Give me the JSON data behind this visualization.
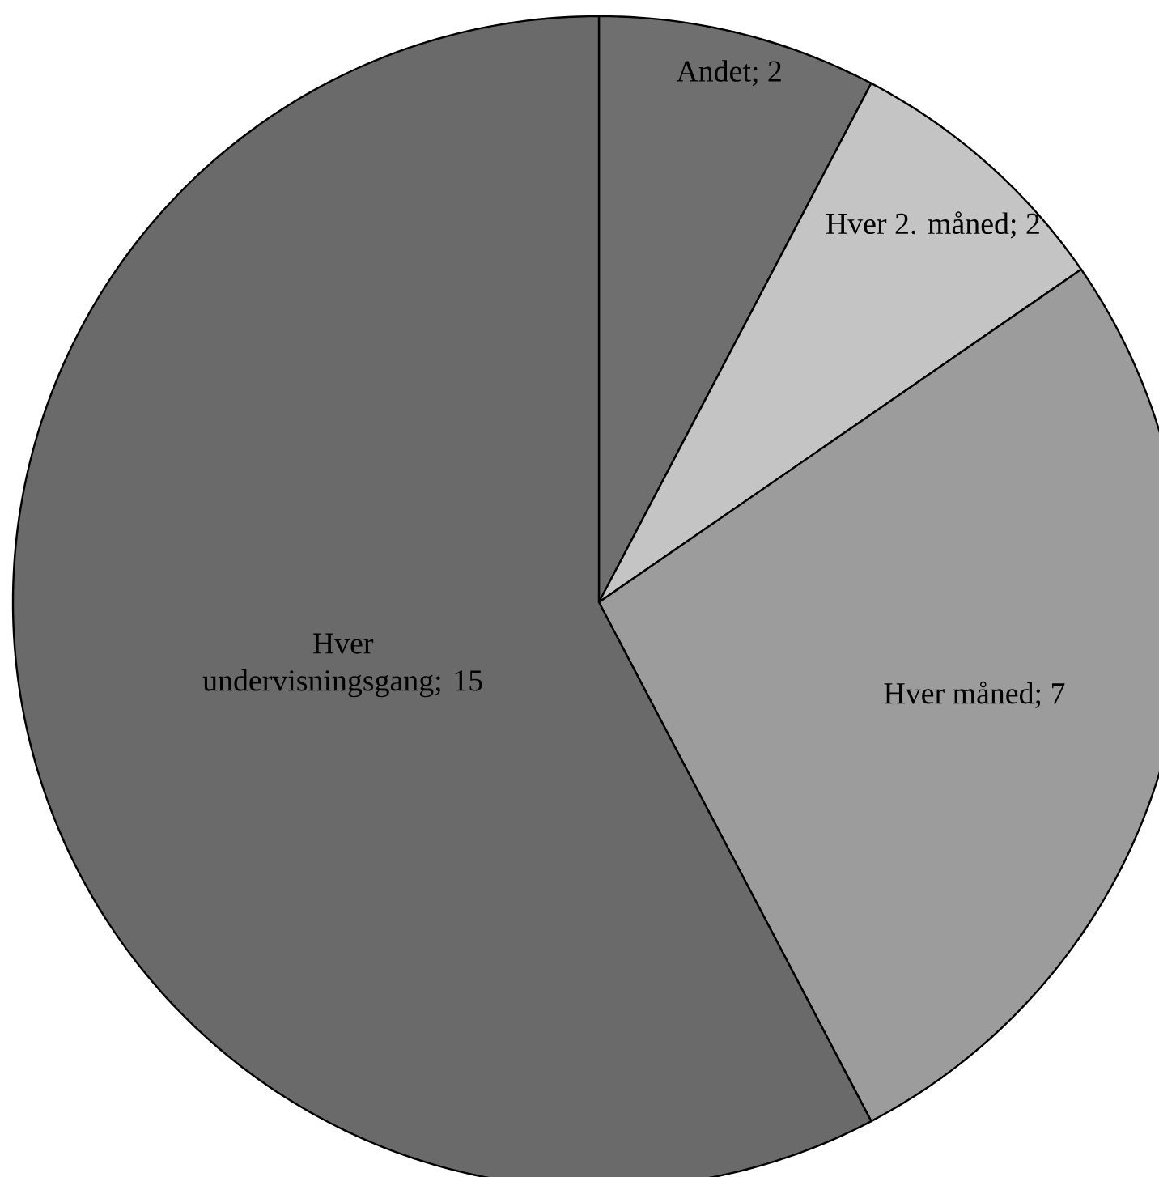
{
  "chart_data": {
    "type": "pie",
    "categories": [
      "Andet",
      "Hver 2. måned",
      "Hver måned",
      "Hver undervisningsgang"
    ],
    "values": [
      2,
      2,
      7,
      15
    ],
    "value_labels": [
      "; 2",
      "; 2",
      "; 7",
      "; 15"
    ],
    "colors": [
      "#6f6f6f",
      "#c4c4c4",
      "#9c9c9c",
      "#6a6a6a"
    ]
  }
}
